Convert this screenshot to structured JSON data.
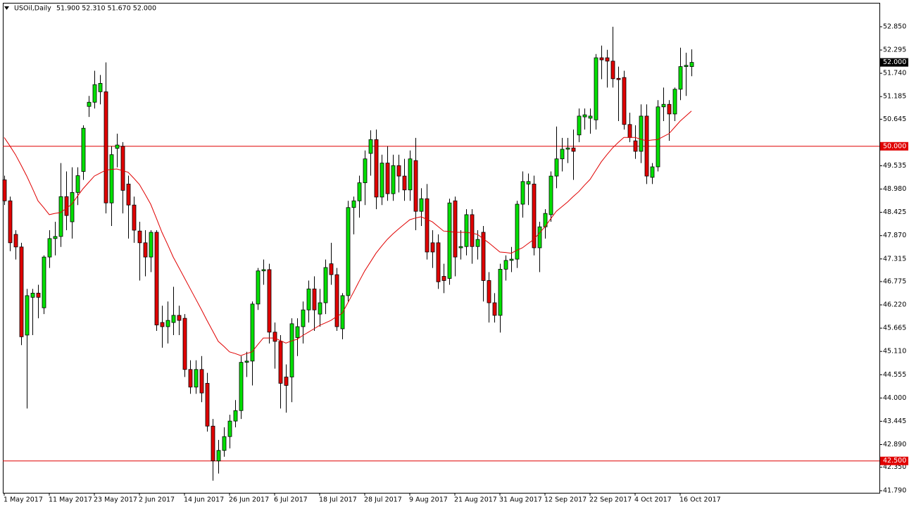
{
  "chart_data": {
    "type": "candlestick",
    "symbol": "USOil,Daily",
    "ohlc_text": "51.900 52.310 51.670 52.000",
    "categories": [
      "1 May 2017",
      null,
      null,
      null,
      null,
      null,
      null,
      null,
      "11 May 2017",
      null,
      null,
      null,
      null,
      null,
      null,
      null,
      "23 May 2017",
      null,
      null,
      null,
      null,
      null,
      null,
      null,
      "2 Jun 2017",
      null,
      null,
      null,
      null,
      null,
      null,
      null,
      "14 Jun 2017",
      null,
      null,
      null,
      null,
      null,
      null,
      null,
      "26 Jun 2017",
      null,
      null,
      null,
      null,
      null,
      null,
      null,
      "6 Jul 2017",
      null,
      null,
      null,
      null,
      null,
      null,
      null,
      "18 Jul 2017",
      null,
      null,
      null,
      null,
      null,
      null,
      null,
      "28 Jul 2017",
      null,
      null,
      null,
      null,
      null,
      null,
      null,
      "9 Aug 2017",
      null,
      null,
      null,
      null,
      null,
      null,
      null,
      "21 Aug 2017",
      null,
      null,
      null,
      null,
      null,
      null,
      null,
      "31 Aug 2017",
      null,
      null,
      null,
      null,
      null,
      null,
      null,
      "12 Sep 2017",
      null,
      null,
      null,
      null,
      null,
      null,
      null,
      "22 Sep 2017",
      null,
      null,
      null,
      null,
      null,
      null,
      null,
      "4 Oct 2017",
      null,
      null,
      null,
      null,
      null,
      null,
      null,
      "16 Oct 2017",
      null,
      null
    ],
    "open": [
      49.2,
      48.7,
      47.9,
      47.6,
      45.5,
      46.4,
      46.5,
      46.15,
      47.36,
      47.8,
      47.85,
      48.8,
      48.2,
      48.9,
      49.4,
      50.95,
      51.05,
      51.3,
      51.3,
      48.65,
      49.95,
      50.0,
      49.1,
      48.6,
      47.98,
      47.7,
      47.36,
      47.95,
      45.8,
      45.7,
      45.8,
      45.97,
      45.9,
      44.68,
      44.26,
      44.68,
      44.35,
      43.33,
      42.5,
      42.75,
      43.08,
      43.45,
      43.7,
      44.85,
      44.88,
      46.24,
      47.03,
      47.06,
      45.57,
      45.35,
      44.5,
      44.5,
      45.44,
      45.7,
      46.1,
      46.6,
      46.0,
      46.27,
      47.2,
      46.94,
      45.65,
      46.44,
      48.54,
      48.7,
      49.13,
      49.83,
      50.16,
      48.79,
      49.6,
      48.87,
      49.54,
      49.29,
      48.96,
      49.66,
      48.45,
      48.75,
      47.7,
      47.7,
      46.9,
      46.85,
      48.7,
      47.58,
      47.61,
      48.37,
      47.61,
      47.95,
      46.8,
      46.27,
      45.97,
      47.07,
      47.28,
      47.31,
      48.62,
      49.1,
      49.1,
      47.58,
      48.08,
      48.37,
      49.29,
      49.7,
      49.93,
      49.96,
      50.27,
      50.7,
      50.67,
      50.63,
      52.11,
      52.11,
      52.03,
      51.62,
      51.64,
      50.52,
      50.13,
      49.88,
      50.72,
      49.26,
      49.51,
      50.94,
      51.0,
      50.77,
      51.36,
      51.9,
      51.9
    ],
    "high": [
      49.3,
      48.8,
      48.0,
      47.7,
      46.6,
      46.6,
      46.7,
      47.4,
      48.0,
      48.2,
      49.6,
      49.4,
      49.5,
      49.5,
      50.5,
      51.2,
      51.8,
      51.7,
      52.0,
      50.0,
      50.3,
      50.1,
      49.3,
      48.8,
      48.2,
      48.0,
      48.0,
      48.0,
      46.2,
      46.3,
      46.65,
      46.2,
      46.0,
      44.9,
      44.9,
      45.0,
      44.6,
      43.5,
      43.0,
      43.3,
      43.6,
      43.95,
      45.0,
      45.1,
      46.3,
      47.1,
      47.3,
      47.2,
      45.8,
      45.5,
      44.8,
      45.9,
      45.9,
      46.3,
      46.8,
      46.9,
      46.6,
      47.3,
      47.7,
      47.1,
      46.5,
      48.7,
      48.8,
      49.3,
      49.9,
      50.38,
      50.4,
      49.8,
      50.0,
      49.8,
      49.8,
      49.7,
      49.9,
      50.2,
      49.0,
      49.1,
      48.0,
      47.9,
      47.2,
      48.75,
      48.8,
      48.0,
      48.5,
      48.5,
      48.0,
      48.1,
      47.0,
      46.5,
      47.2,
      47.4,
      47.6,
      48.7,
      49.4,
      49.35,
      49.3,
      48.2,
      48.5,
      49.4,
      50.47,
      50.2,
      50.2,
      50.4,
      50.9,
      50.9,
      50.9,
      52.2,
      52.4,
      52.3,
      52.85,
      51.9,
      51.8,
      50.8,
      50.5,
      51.0,
      51.0,
      49.6,
      51.1,
      51.4,
      51.1,
      51.4,
      52.35,
      52.23,
      52.31
    ],
    "low": [
      48.6,
      47.5,
      47.3,
      45.26,
      43.75,
      45.5,
      45.9,
      46.0,
      47.1,
      47.4,
      47.6,
      48.0,
      47.8,
      48.6,
      49.2,
      50.7,
      50.9,
      51.0,
      48.4,
      48.1,
      49.5,
      48.4,
      47.8,
      47.7,
      46.8,
      46.9,
      47.0,
      45.6,
      45.2,
      45.3,
      45.5,
      45.5,
      44.5,
      44.1,
      44.1,
      43.9,
      43.2,
      42.03,
      42.2,
      42.6,
      42.8,
      43.3,
      43.5,
      44.5,
      44.3,
      46.1,
      46.7,
      45.3,
      44.7,
      43.75,
      43.65,
      43.9,
      45.0,
      45.3,
      45.8,
      45.6,
      45.7,
      46.0,
      46.7,
      45.6,
      45.4,
      46.3,
      47.9,
      48.3,
      48.6,
      49.3,
      48.5,
      48.6,
      48.7,
      48.7,
      48.9,
      48.7,
      48.7,
      48.0,
      48.1,
      47.3,
      47.1,
      46.6,
      46.5,
      46.7,
      46.9,
      47.3,
      47.4,
      47.2,
      47.3,
      46.3,
      45.8,
      45.8,
      45.56,
      46.8,
      47.0,
      47.1,
      48.3,
      48.6,
      47.4,
      47.0,
      47.8,
      48.2,
      49.0,
      49.4,
      49.6,
      49.2,
      50.1,
      50.4,
      50.3,
      50.4,
      51.6,
      51.4,
      51.4,
      50.6,
      50.4,
      50.1,
      49.7,
      49.6,
      49.1,
      49.1,
      49.4,
      50.6,
      50.13,
      50.6,
      51.1,
      51.2,
      51.67
    ],
    "close": [
      48.7,
      47.7,
      47.6,
      45.46,
      46.44,
      46.5,
      46.4,
      47.36,
      47.8,
      47.85,
      48.8,
      48.35,
      48.9,
      49.3,
      50.43,
      51.05,
      51.47,
      51.5,
      48.65,
      49.8,
      50.03,
      48.95,
      48.6,
      48.0,
      47.7,
      47.36,
      47.95,
      45.74,
      45.7,
      45.85,
      45.97,
      45.85,
      44.68,
      44.26,
      44.68,
      44.12,
      43.33,
      42.5,
      42.75,
      43.08,
      43.45,
      43.7,
      44.85,
      44.88,
      46.24,
      47.03,
      47.06,
      45.57,
      45.35,
      44.35,
      44.3,
      45.77,
      45.7,
      46.1,
      46.6,
      46.1,
      46.27,
      47.11,
      46.94,
      45.7,
      46.44,
      48.54,
      48.7,
      49.13,
      49.7,
      50.16,
      48.79,
      49.6,
      48.87,
      49.54,
      49.29,
      48.96,
      49.7,
      48.45,
      48.75,
      47.48,
      47.48,
      46.77,
      46.8,
      48.65,
      47.36,
      47.61,
      48.37,
      47.61,
      47.78,
      46.8,
      46.27,
      45.97,
      47.07,
      47.28,
      47.31,
      48.62,
      49.16,
      49.16,
      47.58,
      48.08,
      48.4,
      49.29,
      49.7,
      49.93,
      49.96,
      49.88,
      50.72,
      50.75,
      50.72,
      52.11,
      52.06,
      52.03,
      51.61,
      51.59,
      50.52,
      50.21,
      49.88,
      50.72,
      49.29,
      49.51,
      50.94,
      51.0,
      50.77,
      51.36,
      51.9,
      51.93,
      52.0
    ],
    "up_color": "#00e000",
    "down_color": "#e00000",
    "ma": {
      "color": "#e00000",
      "values": [
        50.21,
        50.01,
        49.8,
        49.55,
        49.29,
        49.0,
        48.7,
        48.54,
        48.37,
        48.4,
        48.42,
        48.52,
        48.62,
        48.81,
        48.99,
        49.14,
        49.29,
        49.36,
        49.43,
        49.45,
        49.46,
        49.42,
        49.38,
        49.24,
        49.09,
        48.86,
        48.62,
        48.29,
        47.95,
        47.66,
        47.36,
        47.11,
        46.86,
        46.61,
        46.36,
        46.11,
        45.85,
        45.6,
        45.35,
        45.23,
        45.1,
        45.06,
        45.01,
        45.06,
        45.1,
        45.27,
        45.43,
        45.43,
        45.43,
        45.37,
        45.31,
        45.36,
        45.4,
        45.49,
        45.57,
        45.65,
        45.73,
        45.79,
        45.85,
        45.94,
        46.02,
        46.27,
        46.52,
        46.78,
        47.03,
        47.24,
        47.45,
        47.62,
        47.78,
        47.91,
        48.03,
        48.14,
        48.25,
        48.29,
        48.32,
        48.26,
        48.2,
        48.09,
        47.98,
        47.97,
        47.95,
        47.95,
        47.95,
        47.93,
        47.9,
        47.8,
        47.7,
        47.59,
        47.48,
        47.47,
        47.45,
        47.52,
        47.58,
        47.68,
        47.78,
        47.93,
        48.08,
        48.27,
        48.45,
        48.56,
        48.67,
        48.8,
        48.92,
        49.07,
        49.21,
        49.42,
        49.63,
        49.8,
        49.96,
        50.09,
        50.21,
        50.21,
        50.21,
        50.17,
        50.13,
        50.15,
        50.16,
        50.23,
        50.3,
        50.45,
        50.6,
        50.72,
        50.84
      ]
    },
    "hlines": [
      {
        "value": 50.0,
        "label": "50.000",
        "color": "#e00000"
      },
      {
        "value": 42.5,
        "label": "42.500",
        "color": "#e00000"
      }
    ],
    "last_price_label": "52.000",
    "ylim": [
      41.74,
      53.42
    ],
    "yticks": [
      {
        "value": 52.85,
        "label": "52.850"
      },
      {
        "value": 52.295,
        "label": "52.295"
      },
      {
        "value": 51.74,
        "label": "51.740"
      },
      {
        "value": 51.185,
        "label": "51.185"
      },
      {
        "value": 50.645,
        "label": "50.645"
      },
      {
        "value": 49.535,
        "label": "49.535"
      },
      {
        "value": 48.98,
        "label": "48.980"
      },
      {
        "value": 48.425,
        "label": "48.425"
      },
      {
        "value": 47.87,
        "label": "47.870"
      },
      {
        "value": 47.315,
        "label": "47.315"
      },
      {
        "value": 46.775,
        "label": "46.775"
      },
      {
        "value": 46.22,
        "label": "46.220"
      },
      {
        "value": 45.665,
        "label": "45.665"
      },
      {
        "value": 45.11,
        "label": "45.110"
      },
      {
        "value": 44.555,
        "label": "44.555"
      },
      {
        "value": 44.0,
        "label": "44.000"
      },
      {
        "value": 43.445,
        "label": "43.445"
      },
      {
        "value": 42.89,
        "label": "42.890"
      },
      {
        "value": 42.35,
        "label": "42.350"
      },
      {
        "value": 41.79,
        "label": "41.790"
      }
    ],
    "grid": false
  }
}
